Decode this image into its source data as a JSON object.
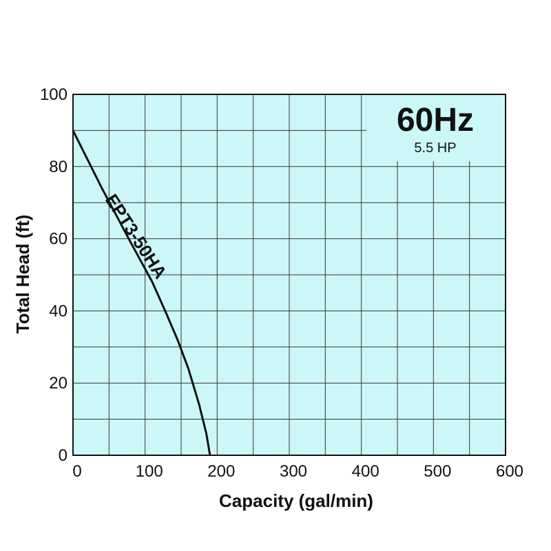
{
  "chart_data": {
    "type": "line",
    "xlabel": "Capacity (gal/min)",
    "ylabel": "Total Head (ft)",
    "xlim": [
      0,
      600
    ],
    "ylim": [
      0,
      100
    ],
    "x_ticks": [
      0,
      100,
      200,
      300,
      400,
      500,
      600
    ],
    "y_ticks": [
      0,
      20,
      40,
      60,
      80,
      100
    ],
    "grid": true,
    "background_color": "#ccf7f8",
    "line_color": "#111111",
    "annotation_frequency": "60Hz",
    "annotation_power": "5.5 HP",
    "series": [
      {
        "name": "EPT3-50HA",
        "x": [
          0,
          40,
          80,
          110,
          130,
          145,
          160,
          175,
          185,
          190
        ],
        "y": [
          90,
          74,
          59,
          48,
          39,
          32,
          24,
          14,
          6,
          0
        ]
      }
    ]
  }
}
